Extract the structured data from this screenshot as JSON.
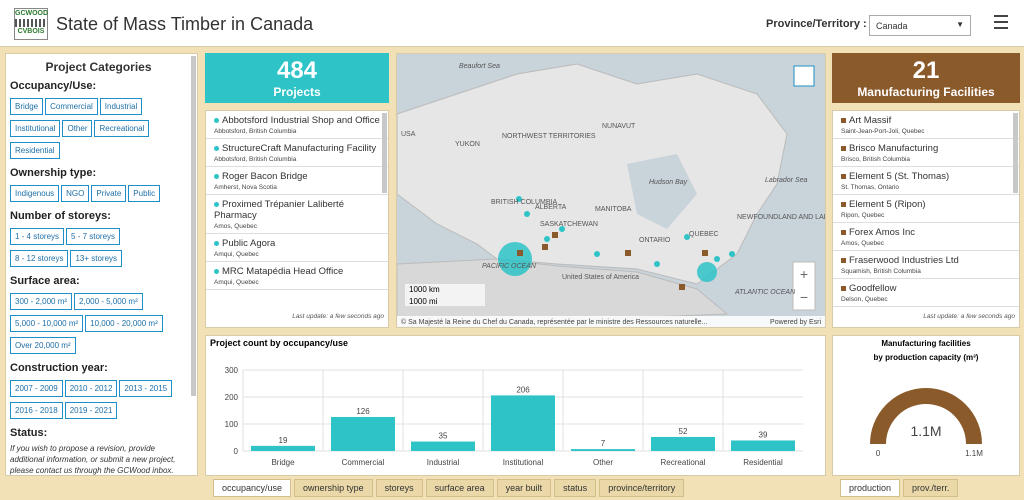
{
  "header": {
    "logo": [
      "GCWOOD",
      "CVBOIS"
    ],
    "title": "State of Mass Timber in Canada",
    "filter_label": "Province/Territory :",
    "filter_value": "Canada"
  },
  "categories_panel": {
    "title": "Project Categories",
    "sections": [
      {
        "heading": "Occupancy/Use:",
        "buttons": [
          "Bridge",
          "Commercial",
          "Industrial",
          "Institutional",
          "Other",
          "Recreational",
          "Residential"
        ]
      },
      {
        "heading": "Ownership type:",
        "buttons": [
          "Indigenous",
          "NGO",
          "Private",
          "Public"
        ]
      },
      {
        "heading": "Number of storeys:",
        "buttons": [
          "1 - 4 storeys",
          "5 - 7 storeys",
          "8 - 12 storeys",
          "13+ storeys"
        ]
      },
      {
        "heading": "Surface area:",
        "buttons": [
          "300 - 2,000 m²",
          "2,000 - 5,000 m²",
          "5,000 - 10,000 m²",
          "10,000 - 20,000 m²",
          "Over 20,000 m²"
        ]
      },
      {
        "heading": "Construction year:",
        "buttons": [
          "2007 - 2009",
          "2010 - 2012",
          "2013 - 2015",
          "2016 - 2018",
          "2019 - 2021"
        ]
      }
    ],
    "status_heading": "Status:",
    "status_text": "If you wish to propose a revision, provide additional information, or submit a new project, please contact us through the GCWood inbox."
  },
  "projects": {
    "count": "484",
    "label": "Projects",
    "items": [
      {
        "name": "Abbotsford Industrial Shop and Office",
        "location": "Abbotsford, British Columbia"
      },
      {
        "name": "StructureCraft Manufacturing Facility",
        "location": "Abbotsford, British Columbia"
      },
      {
        "name": "Roger Bacon Bridge",
        "location": "Amherst, Nova Scotia"
      },
      {
        "name": "Proximed Trépanier Laliberté Pharmacy",
        "location": "Amos, Quebec"
      },
      {
        "name": "Public Agora",
        "location": "Amqui, Quebec"
      },
      {
        "name": "MRC Matapédia Head Office",
        "location": "Amqui, Quebec"
      }
    ],
    "footer": "Last update: a few seconds ago"
  },
  "map": {
    "labels": [
      "Beaufort Sea",
      "USA",
      "NORTHWEST TERRITORIES",
      "NUNAVUT",
      "YUKON",
      "Hudson Bay",
      "Labrador Sea",
      "BRITISH COLUMBIA",
      "ALBERTA",
      "SASKATCHEWAN",
      "MANITOBA",
      "QUEBEC",
      "ONTARIO",
      "NEWFOUNDLAND AND LABRADOR",
      "PACIFIC OCEAN",
      "United States of America",
      "ATLANTIC OCEAN"
    ],
    "scale_km": "1000 km",
    "scale_mi": "1000 mi",
    "attribution": "© Sa Majesté la Reine du Chef du Canada, représentée par le ministre des Ressources naturelle...",
    "powered_by": "Powered by Esri"
  },
  "facilities": {
    "count": "21",
    "label": "Manufacturing Facilities",
    "items": [
      {
        "name": "Art Massif",
        "location": "Saint-Jean-Port-Joli, Quebec"
      },
      {
        "name": "Brisco Manufacturing",
        "location": "Brisco, British Columbia"
      },
      {
        "name": "Element 5 (St. Thomas)",
        "location": "St. Thomas, Ontario"
      },
      {
        "name": "Element 5 (Ripon)",
        "location": "Ripon, Quebec"
      },
      {
        "name": "Forex Amos Inc",
        "location": "Amos, Quebec"
      },
      {
        "name": "Fraserwood Industries Ltd",
        "location": "Squamish, British Columbia"
      },
      {
        "name": "Goodfellow",
        "location": "Delson, Quebec"
      }
    ],
    "footer": "Last update: a few seconds ago"
  },
  "chart_data": {
    "type": "bar",
    "title": "Project count by occupancy/use",
    "categories": [
      "Bridge",
      "Commercial",
      "Industrial",
      "Institutional",
      "Other",
      "Recreational",
      "Residential"
    ],
    "values": [
      19,
      126,
      35,
      206,
      7,
      52,
      39
    ],
    "color": "#2ec3c7",
    "ylim": [
      0,
      300
    ],
    "yticks": [
      0,
      100,
      200,
      300
    ],
    "grid": true
  },
  "chart_tabs": [
    "occupancy/use",
    "ownership type",
    "storeys",
    "surface area",
    "year built",
    "status",
    "province/territory"
  ],
  "gauge": {
    "title": "Manufacturing facilities",
    "subtitle": "by production capacity (m³)",
    "value": 1100000,
    "value_label": "1.1M",
    "ticks": [
      0,
      {
        "value": 1100000,
        "label": "1.1M"
      }
    ],
    "color": "#8b5a2b"
  },
  "gauge_tabs": [
    "production",
    "prov./terr."
  ]
}
